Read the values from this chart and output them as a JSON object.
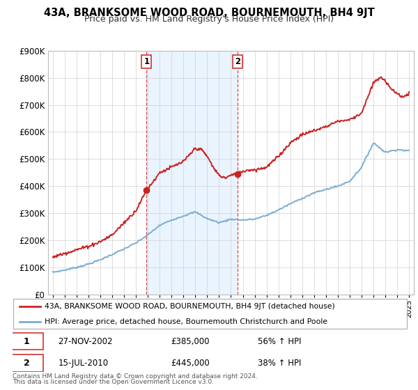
{
  "title": "43A, BRANKSOME WOOD ROAD, BOURNEMOUTH, BH4 9JT",
  "subtitle": "Price paid vs. HM Land Registry's House Price Index (HPI)",
  "legend_line1": "43A, BRANKSOME WOOD ROAD, BOURNEMOUTH, BH4 9JT (detached house)",
  "legend_line2": "HPI: Average price, detached house, Bournemouth Christchurch and Poole",
  "sale1_date": "27-NOV-2002",
  "sale1_price": "£385,000",
  "sale1_hpi": "56% ↑ HPI",
  "sale1_year": 2002.9,
  "sale1_value": 385000,
  "sale2_date": "15-JUL-2010",
  "sale2_price": "£445,000",
  "sale2_hpi": "38% ↑ HPI",
  "sale2_year": 2010.54,
  "sale2_value": 445000,
  "hpi_color": "#7aadd4",
  "price_color": "#cc2222",
  "shade_color": "#ddeeff",
  "footer": "Contains HM Land Registry data © Crown copyright and database right 2024.\nThis data is licensed under the Open Government Licence v3.0.",
  "ylim": [
    0,
    900000
  ],
  "yticks": [
    0,
    100000,
    200000,
    300000,
    400000,
    500000,
    600000,
    700000,
    800000,
    900000
  ],
  "xlim_start": 1994.6,
  "xlim_end": 2025.4
}
